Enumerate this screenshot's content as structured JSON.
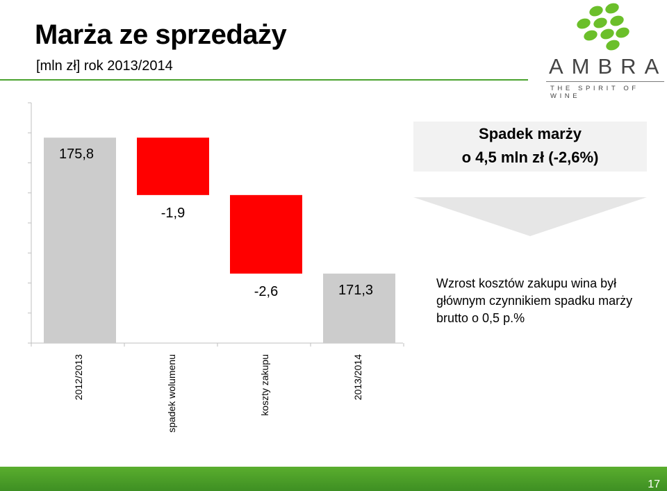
{
  "header": {
    "title": "Marża ze sprzedaży",
    "subtitle": "[mln zł] rok 2013/2014"
  },
  "logo": {
    "word": "AMBRA",
    "tagline": "THE SPIRIT OF WINE",
    "color": "#6bbf2a"
  },
  "chart_data": {
    "type": "bar",
    "subtype": "waterfall",
    "categories": [
      "2012/2013",
      "spadek wolumenu",
      "koszty zakupu",
      "2013/2014"
    ],
    "values": [
      175.8,
      -1.9,
      -2.6,
      171.3
    ],
    "labels": [
      "175,8",
      "-1,9",
      "-2,6",
      "171,3"
    ],
    "kinds": [
      "total",
      "delta",
      "delta",
      "total"
    ],
    "colors": {
      "total": "#cccccc",
      "decrease": "#ff0000"
    },
    "grid": false,
    "legend": "none"
  },
  "callout": {
    "title": "Spadek marży",
    "value": "o 4,5 mln zł (-2,6%)"
  },
  "note": {
    "text": "Wzrost kosztów zakupu wina był głównym czynnikiem spadku marży brutto o 0,5 p.%"
  },
  "footer": {
    "page_number": "17",
    "color": "#4aa22e"
  }
}
